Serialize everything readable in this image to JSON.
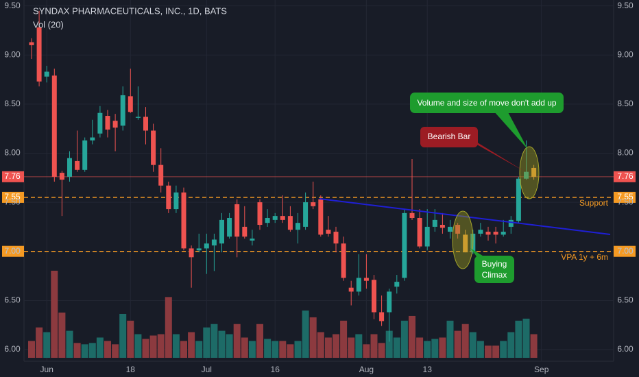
{
  "chart_data": {
    "type": "candlestick",
    "title": "SYNDAX PHARMACEUTICALS, INC., 1D, BATS",
    "subtitle": "Vol (20)",
    "categories": [
      null,
      null,
      "Jun",
      null,
      null,
      null,
      null,
      null,
      null,
      null,
      null,
      null,
      null,
      "18",
      null,
      null,
      null,
      null,
      null,
      null,
      null,
      null,
      null,
      "Jul",
      null,
      null,
      null,
      null,
      null,
      null,
      null,
      null,
      "16",
      null,
      null,
      null,
      null,
      null,
      null,
      null,
      null,
      null,
      null,
      null,
      "Aug",
      null,
      null,
      null,
      null,
      null,
      null,
      null,
      "13",
      null,
      null,
      null,
      null,
      null,
      null,
      null,
      null,
      null,
      null,
      null,
      null,
      null,
      null,
      "Sep"
    ],
    "open": [
      9.13,
      9.28,
      8.78,
      8.79,
      7.8,
      7.76,
      7.92,
      7.83,
      8.13,
      8.2,
      8.38,
      8.33,
      8.28,
      8.58,
      8.36,
      8.37,
      8.23,
      7.88,
      7.67,
      7.43,
      7.6,
      7.03,
      7.01,
      7.03,
      7.06,
      7.08,
      7.15,
      7.48,
      7.25,
      7.11,
      7.5,
      7.29,
      7.32,
      7.36,
      7.36,
      7.22,
      7.25,
      7.5,
      7.53,
      7.22,
      7.2,
      7.08,
      6.63,
      6.59,
      6.73,
      6.71,
      6.38,
      6.38,
      6.64,
      6.73,
      7.39,
      7.34,
      7.05,
      7.25,
      7.27,
      7.2,
      7.27,
      7.17,
      6.99,
      7.18,
      7.2,
      7.2,
      7.17,
      7.25,
      7.31,
      7.74,
      7.85,
      null
    ],
    "high": [
      9.17,
      9.45,
      8.89,
      8.86,
      7.82,
      8.02,
      8.23,
      8.16,
      8.34,
      8.48,
      8.44,
      8.4,
      8.68,
      8.86,
      8.68,
      8.47,
      8.3,
      8.05,
      7.71,
      7.67,
      7.65,
      7.06,
      7.18,
      7.18,
      7.18,
      7.39,
      7.39,
      7.53,
      7.46,
      7.22,
      7.53,
      7.43,
      7.39,
      7.57,
      7.46,
      7.39,
      7.6,
      7.71,
      7.57,
      7.36,
      7.25,
      7.15,
      6.7,
      6.97,
      6.97,
      6.76,
      6.55,
      6.62,
      6.76,
      7.43,
      7.94,
      7.43,
      7.43,
      7.43,
      7.39,
      7.32,
      7.29,
      7.22,
      7.22,
      7.29,
      7.25,
      7.25,
      7.32,
      7.36,
      7.76,
      8.13,
      7.88,
      null
    ],
    "low": [
      8.96,
      8.68,
      8.72,
      7.71,
      7.36,
      7.71,
      7.81,
      7.81,
      8.09,
      8.16,
      8.16,
      8.02,
      8.23,
      8.41,
      8.34,
      8.09,
      7.81,
      7.6,
      7.39,
      7.39,
      7.01,
      6.63,
      6.99,
      6.77,
      6.8,
      6.99,
      7.13,
      6.94,
      7.13,
      7.06,
      7.22,
      7.25,
      7.29,
      7.29,
      7.2,
      7.08,
      7.22,
      7.43,
      7.15,
      7.15,
      6.99,
      6.7,
      6.45,
      6.55,
      6.62,
      6.31,
      6.24,
      6.08,
      6.57,
      6.7,
      7.32,
      7.03,
      7.01,
      7.2,
      7.18,
      7.13,
      7.13,
      6.99,
      6.97,
      7.15,
      7.11,
      7.08,
      7.15,
      7.18,
      7.29,
      7.73,
      7.73,
      null
    ],
    "close": [
      9.1,
      8.73,
      8.83,
      7.76,
      7.73,
      7.95,
      7.83,
      8.13,
      8.16,
      8.41,
      8.24,
      8.26,
      8.59,
      8.42,
      8.37,
      8.23,
      7.88,
      7.67,
      7.43,
      7.6,
      7.03,
      6.94,
      7.03,
      7.08,
      7.12,
      7.32,
      7.34,
      7.15,
      7.15,
      7.13,
      7.27,
      7.34,
      7.36,
      7.32,
      7.22,
      7.29,
      7.5,
      7.46,
      7.17,
      7.18,
      7.08,
      6.73,
      6.59,
      6.73,
      6.7,
      6.38,
      6.29,
      6.59,
      6.69,
      7.39,
      7.34,
      7.05,
      7.25,
      7.32,
      7.24,
      7.25,
      7.18,
      6.99,
      7.18,
      7.22,
      7.17,
      7.17,
      7.2,
      7.32,
      7.74,
      7.81,
      7.76,
      null
    ],
    "volume": [
      25,
      45,
      38,
      129,
      67,
      40,
      22,
      20,
      22,
      30,
      25,
      20,
      65,
      55,
      35,
      28,
      33,
      35,
      90,
      35,
      25,
      38,
      25,
      45,
      50,
      40,
      35,
      50,
      30,
      25,
      50,
      28,
      25,
      25,
      20,
      25,
      70,
      60,
      38,
      30,
      35,
      55,
      30,
      35,
      20,
      35,
      22,
      40,
      30,
      55,
      62,
      30,
      25,
      28,
      30,
      55,
      40,
      50,
      38,
      25,
      18,
      18,
      25,
      38,
      55,
      58,
      35,
      null
    ],
    "volume_ylim": [
      0,
      530
    ],
    "up_color": "#26a69a",
    "down_color": "#ef5350",
    "up_volume_color": "#1d6b67",
    "down_volume_color": "#8c3a3f",
    "highlight_color": "#f7a23b",
    "highlighted": [
      57,
      66
    ],
    "ylim": [
      5.86,
      9.56
    ],
    "yticks": [
      {
        "value": 6,
        "label": "6.00"
      },
      {
        "value": 6.5,
        "label": "6.50"
      },
      {
        "value": 7,
        "label": "7.00"
      },
      {
        "value": 7.5,
        "label": "7.50"
      },
      {
        "value": 8,
        "label": "8.00"
      },
      {
        "value": 8.5,
        "label": "8.50"
      },
      {
        "value": 9,
        "label": "9.00"
      },
      {
        "value": 9.5,
        "label": "9.50"
      }
    ],
    "levels": [
      {
        "value": 7.76,
        "label": "7.76",
        "color": "#ef5350",
        "style": "solid"
      },
      {
        "value": 7.55,
        "label": "7.55",
        "color": "#f59a23",
        "style": "dashed",
        "text": "Support"
      },
      {
        "value": 7.0,
        "label": "7.00",
        "color": "#f59a23",
        "style": "dashed",
        "text": "VPA 1y + 6m"
      }
    ],
    "annotations": [
      "Volume and size of move don't add up",
      "Bearish Bar",
      "Buying Climax"
    ]
  }
}
